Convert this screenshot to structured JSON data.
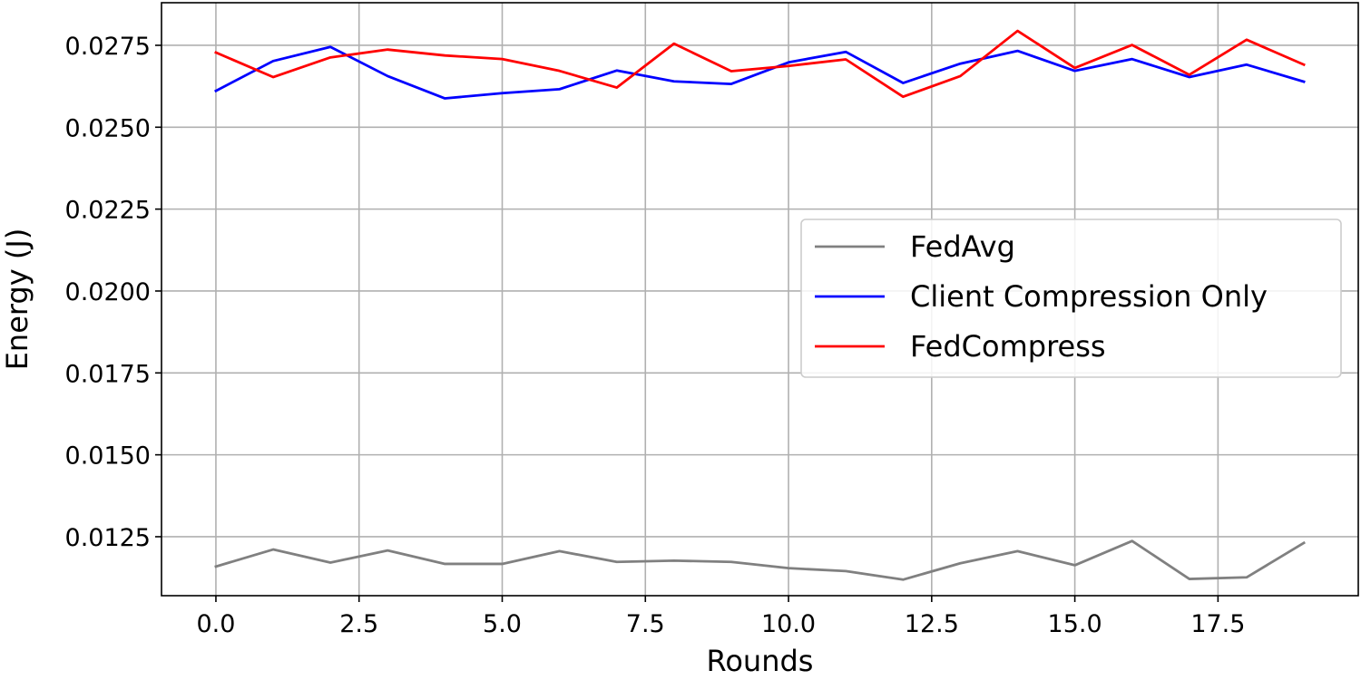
{
  "chart_data": {
    "type": "line",
    "title": "",
    "xlabel": "Rounds",
    "ylabel": "Energy (J)",
    "xlim": [
      -0.95,
      19.95
    ],
    "ylim": [
      0.0107,
      0.0288
    ],
    "x_ticks": [
      0.0,
      2.5,
      5.0,
      7.5,
      10.0,
      12.5,
      15.0,
      17.5
    ],
    "x_tick_labels": [
      "0.0",
      "2.5",
      "5.0",
      "7.5",
      "10.0",
      "12.5",
      "15.0",
      "17.5"
    ],
    "y_ticks": [
      0.0125,
      0.015,
      0.0175,
      0.02,
      0.0225,
      0.025,
      0.0275
    ],
    "y_tick_labels": [
      "0.0125",
      "0.0150",
      "0.0175",
      "0.0200",
      "0.0225",
      "0.0250",
      "0.0275"
    ],
    "grid": true,
    "legend_position": "center-right",
    "x": [
      0,
      1,
      2,
      3,
      4,
      5,
      6,
      7,
      8,
      9,
      10,
      11,
      12,
      13,
      14,
      15,
      16,
      17,
      18,
      19
    ],
    "series": [
      {
        "name": "FedAvg",
        "color": "#808080",
        "values": [
          0.01159,
          0.01211,
          0.01171,
          0.01208,
          0.01167,
          0.01167,
          0.01206,
          0.01173,
          0.01177,
          0.01173,
          0.01154,
          0.01145,
          0.01119,
          0.01169,
          0.01206,
          0.01163,
          0.01237,
          0.01121,
          0.01126,
          0.01231
        ]
      },
      {
        "name": "Client Compression Only",
        "color": "#0000ff",
        "values": [
          0.02611,
          0.02702,
          0.02745,
          0.02656,
          0.02588,
          0.02604,
          0.02616,
          0.02673,
          0.0264,
          0.02632,
          0.02698,
          0.0273,
          0.02635,
          0.02694,
          0.02733,
          0.02672,
          0.02708,
          0.02653,
          0.02691,
          0.02639
        ]
      },
      {
        "name": "FedCompress",
        "color": "#ff0000",
        "values": [
          0.02728,
          0.02653,
          0.02713,
          0.02737,
          0.02719,
          0.02708,
          0.02672,
          0.02621,
          0.02755,
          0.02671,
          0.02687,
          0.02707,
          0.02593,
          0.02656,
          0.02794,
          0.02681,
          0.02751,
          0.0266,
          0.02767,
          0.02691
        ]
      }
    ]
  }
}
